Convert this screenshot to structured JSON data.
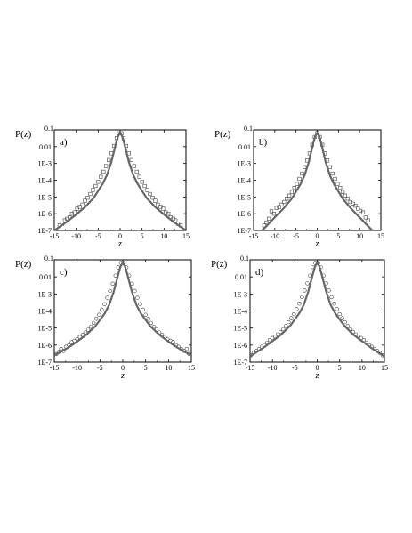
{
  "chart_data": [
    {
      "panel": "a)",
      "type": "scatter",
      "ylabel": "P(z)",
      "xlabel": "z",
      "xlim": [
        -15,
        15
      ],
      "ylim": [
        1e-07,
        0.1
      ],
      "yscale": "log",
      "xticks": [
        -15,
        -10,
        -5,
        0,
        5,
        10,
        15
      ],
      "xtick_labels": [
        "-15",
        "-10",
        "-5",
        "0",
        "5",
        "10",
        "15"
      ],
      "yticks": [
        1e-07,
        1e-06,
        1e-05,
        0.0001,
        0.001,
        0.01,
        0.1
      ],
      "ytick_labels": [
        "1E-7",
        "1E-6",
        "1E-5",
        "1E-4",
        "1E-3",
        "0.01",
        "0.1"
      ],
      "series": [
        {
          "kind": "points",
          "marker": "open-square",
          "x": [
            -13.8,
            -13.2,
            -12.6,
            -12.1,
            -11.5,
            -11.0,
            -10.4,
            -9.8,
            -9.2,
            -8.6,
            -8.0,
            -7.4,
            -6.8,
            -6.2,
            -5.6,
            -5.0,
            -4.4,
            -3.8,
            -3.2,
            -2.6,
            -2.0,
            -1.4,
            -0.8,
            -0.3,
            0.3,
            0.8,
            1.4,
            2.0,
            2.6,
            3.2,
            3.8,
            4.4,
            5.0,
            5.6,
            6.2,
            6.8,
            7.4,
            8.0,
            8.6,
            9.2,
            9.8,
            10.4,
            11.0,
            11.5,
            12.1,
            12.6,
            13.2,
            13.8
          ],
          "y": [
            2e-07,
            2.5e-07,
            4e-07,
            5e-07,
            6e-07,
            1e-06,
            1.2e-06,
            2e-06,
            2.6e-06,
            3.5e-06,
            6e-06,
            9e-06,
            1.5e-05,
            2.6e-05,
            4.5e-05,
            8e-05,
            0.00016,
            0.00032,
            0.0007,
            0.0016,
            0.004,
            0.011,
            0.032,
            0.063,
            0.063,
            0.032,
            0.011,
            0.004,
            0.0016,
            0.0007,
            0.00032,
            0.00016,
            8e-05,
            4.5e-05,
            2.6e-05,
            1.5e-05,
            9e-06,
            6e-06,
            3.5e-06,
            2.6e-06,
            2e-06,
            1.2e-06,
            1e-06,
            6e-07,
            5e-07,
            4e-07,
            2.5e-07,
            2e-07
          ]
        },
        {
          "kind": "fit-line",
          "x": [
            -15,
            -12,
            -10,
            -8,
            -6,
            -4,
            -3,
            -2,
            -1,
            -0.5,
            0,
            0.5,
            1,
            2,
            3,
            4,
            6,
            8,
            10,
            12,
            15
          ],
          "y": [
            1e-07,
            3.5e-07,
            9e-07,
            2.5e-06,
            9e-06,
            6e-05,
            0.0002,
            0.0012,
            0.014,
            0.04,
            0.068,
            0.04,
            0.014,
            0.0012,
            0.0002,
            6e-05,
            9e-06,
            2.5e-06,
            9e-07,
            3.5e-07,
            1e-07
          ]
        }
      ]
    },
    {
      "panel": "b)",
      "type": "scatter",
      "ylabel": "P(z)",
      "xlabel": "z",
      "xlim": [
        -15,
        15
      ],
      "ylim": [
        1e-07,
        0.1
      ],
      "yscale": "log",
      "xticks": [
        -15,
        -10,
        -5,
        0,
        5,
        10,
        15
      ],
      "xtick_labels": [
        "-15",
        "-10",
        "-5",
        "0",
        "5",
        "10",
        "15"
      ],
      "yticks": [
        1e-07,
        1e-06,
        1e-05,
        0.0001,
        0.001,
        0.01,
        0.1
      ],
      "ytick_labels": [
        "1E-7",
        "1E-6",
        "1E-5",
        "1E-4",
        "1E-3",
        "0.01",
        "0.1"
      ],
      "series": [
        {
          "kind": "points",
          "marker": "open-square",
          "x": [
            -12.5,
            -12.0,
            -11.4,
            -10.8,
            -10.2,
            -9.6,
            -9.0,
            -8.4,
            -7.8,
            -7.2,
            -6.6,
            -6.0,
            -5.4,
            -4.8,
            -4.2,
            -3.6,
            -3.0,
            -2.4,
            -1.8,
            -1.2,
            -0.6,
            0,
            0.6,
            1.2,
            1.8,
            2.4,
            3.0,
            3.6,
            4.2,
            4.8,
            5.4,
            6.0,
            6.6,
            7.2,
            7.8,
            8.4,
            9.0,
            9.6,
            10.2,
            10.8,
            11.4,
            12.0
          ],
          "y": [
            2e-07,
            3e-07,
            5e-07,
            1.4e-06,
            1e-06,
            2.2e-06,
            2.5e-06,
            3.5e-06,
            5e-06,
            8e-06,
            1.2e-05,
            2e-05,
            3.5e-05,
            6e-05,
            0.00012,
            0.00025,
            0.0006,
            0.0015,
            0.004,
            0.013,
            0.038,
            0.065,
            0.038,
            0.013,
            0.004,
            0.0015,
            0.0006,
            0.00025,
            0.00012,
            6e-05,
            3.5e-05,
            2e-05,
            1.2e-05,
            8e-06,
            5e-06,
            4e-06,
            3e-06,
            2e-06,
            1.5e-06,
            1.2e-06,
            6e-07,
            4e-07
          ]
        },
        {
          "kind": "fit-line",
          "x": [
            -13,
            -12,
            -10,
            -8,
            -6,
            -4,
            -3,
            -2,
            -1,
            -0.5,
            0,
            0.5,
            1,
            2,
            3,
            4,
            6,
            8,
            10,
            12,
            13
          ],
          "y": [
            1e-07,
            1.8e-07,
            6e-07,
            2e-06,
            8e-06,
            5.5e-05,
            0.00019,
            0.0012,
            0.014,
            0.04,
            0.068,
            0.04,
            0.014,
            0.0012,
            0.00019,
            5.5e-05,
            8e-06,
            2e-06,
            6e-07,
            1.8e-07,
            1e-07
          ]
        }
      ]
    },
    {
      "panel": "c)",
      "type": "scatter",
      "ylabel": "P(z)",
      "xlabel": "z",
      "xlim": [
        -15,
        15
      ],
      "ylim": [
        1e-07,
        0.1
      ],
      "yscale": "log",
      "xticks": [
        -15,
        -10,
        -5,
        0,
        5,
        10,
        15
      ],
      "xtick_labels": [
        "-15",
        "-10",
        "-5",
        "0",
        "5",
        "10",
        "15"
      ],
      "yticks": [
        1e-07,
        1e-06,
        1e-05,
        0.0001,
        0.001,
        0.01,
        0.1
      ],
      "ytick_labels": [
        "1E-7",
        "1E-6",
        "1E-5",
        "1E-4",
        "1E-3",
        "0.01",
        "0.1"
      ],
      "series": [
        {
          "kind": "points",
          "marker": "open-circle",
          "x": [
            -14.5,
            -14.0,
            -13.5,
            -13.0,
            -12.4,
            -11.8,
            -11.2,
            -10.6,
            -10.0,
            -9.4,
            -8.8,
            -8.2,
            -7.6,
            -7.0,
            -6.4,
            -5.8,
            -5.2,
            -4.6,
            -4.0,
            -3.4,
            -2.8,
            -2.2,
            -1.6,
            -1.0,
            -0.4,
            0.2,
            0.8,
            1.4,
            2.0,
            2.6,
            3.2,
            3.8,
            4.4,
            5.0,
            5.6,
            6.2,
            6.8,
            7.4,
            8.0,
            8.6,
            9.2,
            9.8,
            10.4,
            11.0,
            11.6,
            12.2,
            12.8,
            13.4,
            14.0,
            14.5
          ],
          "y": [
            3e-07,
            4e-07,
            6e-07,
            4.5e-07,
            8e-07,
            1e-06,
            1.5e-06,
            1.8e-06,
            2.2e-06,
            3e-06,
            4e-06,
            5.5e-06,
            8e-06,
            1.2e-05,
            2e-05,
            3.5e-05,
            6e-05,
            0.00012,
            0.00025,
            0.0006,
            0.0015,
            0.004,
            0.012,
            0.036,
            0.065,
            0.065,
            0.036,
            0.012,
            0.004,
            0.0015,
            0.0006,
            0.00025,
            0.00012,
            6e-05,
            3.5e-05,
            2e-05,
            1.2e-05,
            8e-06,
            5.5e-06,
            4e-06,
            3e-06,
            2.2e-06,
            1.8e-06,
            1.5e-06,
            1e-06,
            8e-07,
            6e-07,
            4.5e-07,
            6e-07,
            3e-07
          ]
        },
        {
          "kind": "fit-line",
          "x": [
            -15,
            -12,
            -10,
            -8,
            -6,
            -4,
            -3,
            -2,
            -1,
            -0.5,
            0,
            0.5,
            1,
            2,
            3,
            4,
            6,
            8,
            10,
            12,
            15
          ],
          "y": [
            2.5e-07,
            7e-07,
            1.6e-06,
            4e-06,
            1.3e-05,
            7e-05,
            0.00022,
            0.0013,
            0.014,
            0.04,
            0.068,
            0.04,
            0.014,
            0.0013,
            0.00022,
            7e-05,
            1.3e-05,
            4e-06,
            1.6e-06,
            7e-07,
            2.5e-07
          ]
        }
      ]
    },
    {
      "panel": "d)",
      "type": "scatter",
      "ylabel": "P(z)",
      "xlabel": "z",
      "xlim": [
        -15,
        15
      ],
      "ylim": [
        1e-07,
        0.1
      ],
      "yscale": "log",
      "xticks": [
        -15,
        -10,
        -5,
        0,
        5,
        10,
        15
      ],
      "xtick_labels": [
        "-15",
        "-10",
        "-5",
        "0",
        "5",
        "10",
        "15"
      ],
      "yticks": [
        1e-07,
        1e-06,
        1e-05,
        0.0001,
        0.001,
        0.01,
        0.1
      ],
      "ytick_labels": [
        "1E-7",
        "1E-6",
        "1E-5",
        "1E-4",
        "1E-3",
        "0.01",
        "0.1"
      ],
      "series": [
        {
          "kind": "points",
          "marker": "open-circle",
          "x": [
            -14.8,
            -14.2,
            -13.6,
            -13.0,
            -12.4,
            -11.8,
            -11.2,
            -10.6,
            -10.0,
            -9.4,
            -8.8,
            -8.2,
            -7.6,
            -7.0,
            -6.4,
            -5.8,
            -5.2,
            -4.6,
            -4.0,
            -3.4,
            -2.8,
            -2.2,
            -1.6,
            -1.0,
            -0.4,
            0.2,
            0.8,
            1.4,
            2.0,
            2.6,
            3.2,
            3.8,
            4.4,
            5.0,
            5.6,
            6.2,
            6.8,
            7.4,
            8.0,
            8.6,
            9.2,
            9.8,
            10.4,
            11.0,
            11.6,
            12.2,
            12.8,
            13.4,
            14.0,
            14.6
          ],
          "y": [
            2.5e-07,
            3.5e-07,
            4.5e-07,
            6e-07,
            8e-07,
            1e-06,
            1.4e-06,
            2e-06,
            2.6e-06,
            3.2e-06,
            4.2e-06,
            6e-06,
            8.5e-06,
            1.3e-05,
            2.2e-05,
            3.8e-05,
            6.5e-05,
            0.00013,
            0.00027,
            0.00065,
            0.0016,
            0.0042,
            0.012,
            0.037,
            0.065,
            0.065,
            0.037,
            0.012,
            0.0042,
            0.0016,
            0.00065,
            0.00027,
            0.00013,
            6.5e-05,
            3.8e-05,
            2.2e-05,
            1.3e-05,
            8.5e-06,
            6e-06,
            4.2e-06,
            3.2e-06,
            2.6e-06,
            2e-06,
            1.4e-06,
            1e-06,
            8e-07,
            6e-07,
            4.5e-07,
            3.5e-07,
            2.5e-07
          ]
        },
        {
          "kind": "fit-line",
          "x": [
            -15,
            -12,
            -10,
            -8,
            -6,
            -4,
            -3,
            -2,
            -1,
            -0.5,
            0,
            0.5,
            1,
            2,
            3,
            4,
            6,
            8,
            10,
            12,
            15
          ],
          "y": [
            2.2e-07,
            7e-07,
            1.7e-06,
            4.2e-06,
            1.4e-05,
            7.5e-05,
            0.00023,
            0.00135,
            0.014,
            0.04,
            0.068,
            0.04,
            0.014,
            0.00135,
            0.00023,
            7.5e-05,
            1.4e-05,
            4.2e-06,
            1.7e-06,
            7e-07,
            2.2e-07
          ]
        }
      ]
    }
  ]
}
